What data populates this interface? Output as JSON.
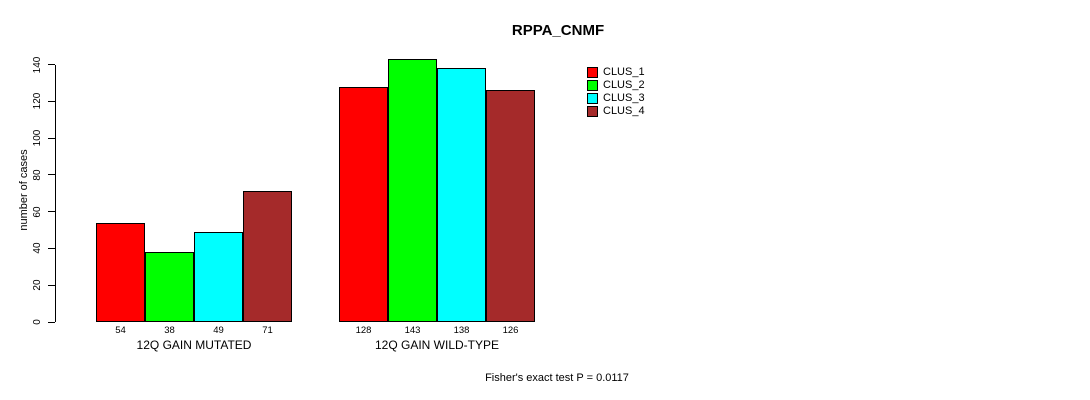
{
  "title": "RPPA_CNMF",
  "footer": "Fisher's exact test P = 0.0117",
  "chart_data": {
    "type": "bar",
    "title": "RPPA_CNMF",
    "xlabel": "",
    "ylabel": "number of cases",
    "categories": [
      "12Q GAIN MUTATED",
      "12Q GAIN WILD-TYPE"
    ],
    "series": [
      {
        "name": "CLUS_1",
        "color": "#FF0000",
        "values": [
          54,
          128
        ]
      },
      {
        "name": "CLUS_2",
        "color": "#00FF00",
        "values": [
          38,
          143
        ]
      },
      {
        "name": "CLUS_3",
        "color": "#00FFFF",
        "values": [
          49,
          138
        ]
      },
      {
        "name": "CLUS_4",
        "color": "#A52A2A",
        "values": [
          71,
          126
        ]
      }
    ],
    "yticks": [
      0,
      20,
      40,
      60,
      80,
      100,
      120,
      140
    ],
    "ylim": [
      0,
      140
    ],
    "grid": false,
    "bar_value_labels": true,
    "legend_position": "top-right",
    "annotation": "Fisher's exact test P = 0.0117"
  }
}
